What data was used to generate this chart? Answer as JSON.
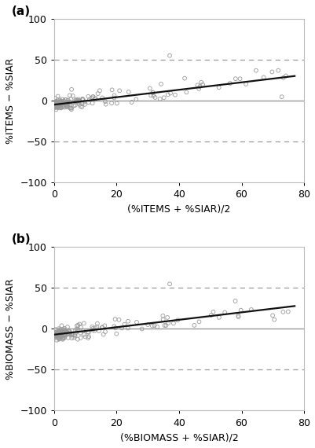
{
  "panel_a": {
    "label": "(a)",
    "xlabel": "(%ITEMS + %SIAR)/2",
    "ylabel": "%ITEMS − %SIAR",
    "xlim": [
      0,
      80
    ],
    "ylim": [
      -100,
      100
    ],
    "xticks": [
      0,
      20,
      40,
      60,
      80
    ],
    "yticks": [
      -100,
      -50,
      0,
      50,
      100
    ],
    "hline_y": 0,
    "dashed_lines": [
      50,
      -50
    ],
    "regression_x0": 0,
    "regression_x1": 77,
    "regression_y0": -5,
    "regression_y1": 30,
    "seed": 42
  },
  "panel_b": {
    "label": "(b)",
    "xlabel": "(%BIOMASS + %SIAR)/2",
    "ylabel": "%BIOMASS − %SIAR",
    "xlim": [
      0,
      80
    ],
    "ylim": [
      -100,
      100
    ],
    "xticks": [
      0,
      20,
      40,
      60,
      80
    ],
    "yticks": [
      -100,
      -50,
      0,
      50,
      100
    ],
    "hline_y": 0,
    "dashed_lines": [
      50,
      -50
    ],
    "regression_x0": 0,
    "regression_x1": 77,
    "regression_y0": -7,
    "regression_y1": 28,
    "seed": 77
  },
  "scatter_edge_color": "#999999",
  "scatter_size": 12,
  "hline_color": "#999999",
  "dashed_color": "#999999",
  "regression_color": "#111111",
  "regression_lw": 1.6,
  "background_color": "#ffffff",
  "label_fontsize": 11,
  "tick_fontsize": 9,
  "axis_label_fontsize": 9,
  "n_points": 160
}
